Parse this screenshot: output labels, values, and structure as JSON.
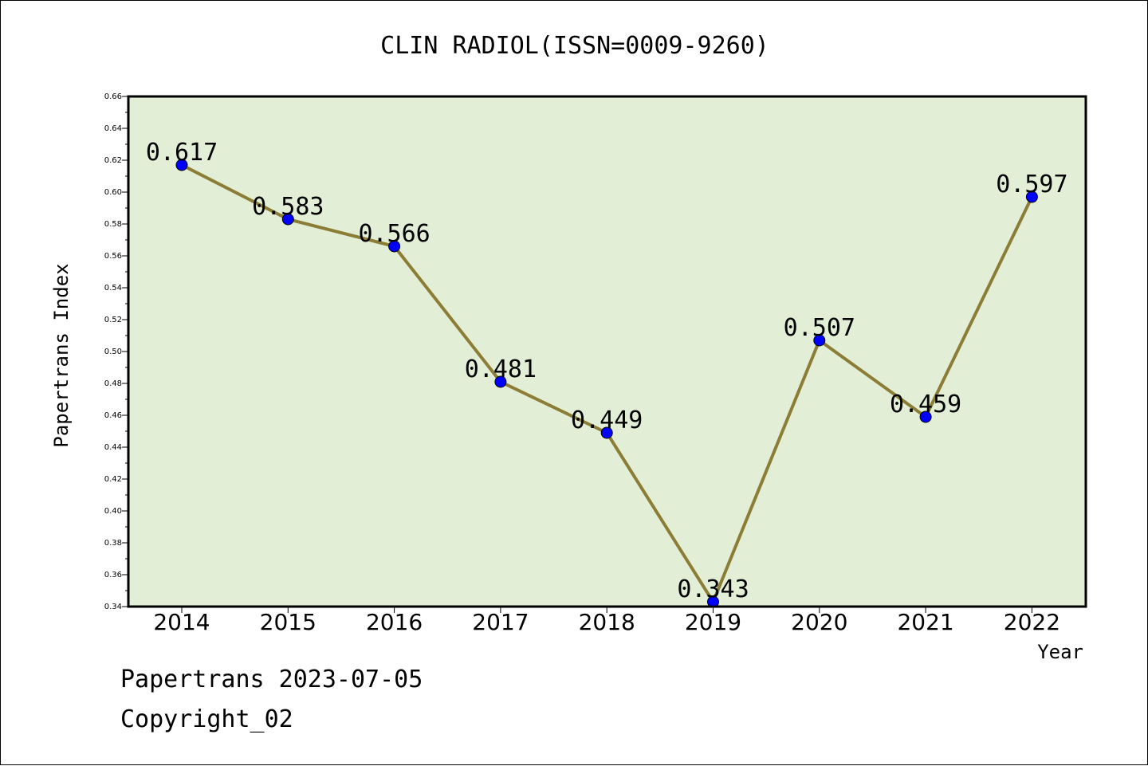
{
  "chart_data": {
    "type": "line",
    "title": "CLIN RADIOL(ISSN=0009-9260)",
    "xlabel": "Year",
    "ylabel": "Papertrans Index",
    "categories": [
      "2014",
      "2015",
      "2016",
      "2017",
      "2018",
      "2019",
      "2020",
      "2021",
      "2022"
    ],
    "series": [
      {
        "values": [
          0.617,
          0.583,
          0.566,
          0.481,
          0.449,
          0.343,
          0.507,
          0.459,
          0.597
        ],
        "labels": [
          "0.617",
          "0.583",
          "0.566",
          "0.481",
          "0.449",
          "0.343",
          "0.507",
          "0.459",
          "0.597"
        ]
      }
    ],
    "ylim": [
      0.34,
      0.66
    ],
    "yticks": [
      "0.34",
      "0.36",
      "0.38",
      "0.40",
      "0.42",
      "0.44",
      "0.46",
      "0.48",
      "0.50",
      "0.52",
      "0.54",
      "0.56",
      "0.58",
      "0.60",
      "0.62",
      "0.64",
      "0.66"
    ],
    "grid": false,
    "colors": {
      "plot_background": "#e2efd6",
      "line": "#8b7d35",
      "marker": "#0000ff"
    }
  },
  "footer": {
    "date_line": "Papertrans 2023-07-05",
    "copyright_line": "Copyright_02"
  }
}
